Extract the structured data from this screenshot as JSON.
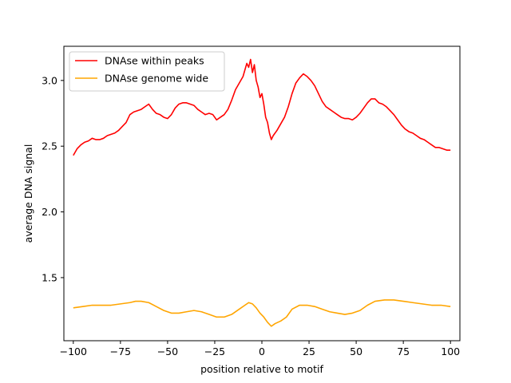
{
  "chart_data": {
    "type": "line",
    "title": "",
    "xlabel": "position relative to motif",
    "ylabel": "average DNA signal",
    "xlim": [
      -105,
      105
    ],
    "ylim": [
      1.02,
      3.26
    ],
    "xticks": [
      -100,
      -75,
      -50,
      -25,
      0,
      25,
      50,
      75,
      100
    ],
    "xtick_labels": [
      "−100",
      "−75",
      "−50",
      "−25",
      "0",
      "25",
      "50",
      "75",
      "100"
    ],
    "yticks": [
      1.5,
      2.0,
      2.5,
      3.0
    ],
    "ytick_labels": [
      "1.5",
      "2.0",
      "2.5",
      "3.0"
    ],
    "grid": false,
    "legend_position": "top-left",
    "series": [
      {
        "name": "DNAse within peaks",
        "color": "#ff0000",
        "points": [
          [
            -100,
            2.43
          ],
          [
            -98,
            2.48
          ],
          [
            -96,
            2.51
          ],
          [
            -94,
            2.53
          ],
          [
            -92,
            2.54
          ],
          [
            -90,
            2.56
          ],
          [
            -88,
            2.55
          ],
          [
            -86,
            2.55
          ],
          [
            -84,
            2.56
          ],
          [
            -82,
            2.58
          ],
          [
            -80,
            2.59
          ],
          [
            -78,
            2.6
          ],
          [
            -76,
            2.62
          ],
          [
            -74,
            2.65
          ],
          [
            -72,
            2.68
          ],
          [
            -70,
            2.74
          ],
          [
            -68,
            2.76
          ],
          [
            -66,
            2.77
          ],
          [
            -64,
            2.78
          ],
          [
            -62,
            2.8
          ],
          [
            -60,
            2.82
          ],
          [
            -58,
            2.78
          ],
          [
            -56,
            2.75
          ],
          [
            -54,
            2.74
          ],
          [
            -52,
            2.72
          ],
          [
            -50,
            2.71
          ],
          [
            -48,
            2.74
          ],
          [
            -46,
            2.79
          ],
          [
            -44,
            2.82
          ],
          [
            -42,
            2.83
          ],
          [
            -40,
            2.83
          ],
          [
            -38,
            2.82
          ],
          [
            -36,
            2.81
          ],
          [
            -34,
            2.78
          ],
          [
            -32,
            2.76
          ],
          [
            -30,
            2.74
          ],
          [
            -28,
            2.75
          ],
          [
            -26,
            2.74
          ],
          [
            -24,
            2.7
          ],
          [
            -22,
            2.72
          ],
          [
            -20,
            2.74
          ],
          [
            -18,
            2.78
          ],
          [
            -16,
            2.85
          ],
          [
            -14,
            2.93
          ],
          [
            -12,
            2.98
          ],
          [
            -10,
            3.03
          ],
          [
            -9,
            3.08
          ],
          [
            -8,
            3.13
          ],
          [
            -7,
            3.1
          ],
          [
            -6,
            3.16
          ],
          [
            -5,
            3.06
          ],
          [
            -4,
            3.12
          ],
          [
            -3,
            3.0
          ],
          [
            -2,
            2.95
          ],
          [
            -1,
            2.87
          ],
          [
            0,
            2.9
          ],
          [
            1,
            2.82
          ],
          [
            2,
            2.72
          ],
          [
            3,
            2.68
          ],
          [
            4,
            2.6
          ],
          [
            5,
            2.55
          ],
          [
            6,
            2.58
          ],
          [
            8,
            2.62
          ],
          [
            10,
            2.67
          ],
          [
            12,
            2.72
          ],
          [
            14,
            2.8
          ],
          [
            16,
            2.9
          ],
          [
            18,
            2.98
          ],
          [
            20,
            3.02
          ],
          [
            22,
            3.05
          ],
          [
            24,
            3.03
          ],
          [
            26,
            3.0
          ],
          [
            28,
            2.96
          ],
          [
            30,
            2.9
          ],
          [
            32,
            2.84
          ],
          [
            34,
            2.8
          ],
          [
            36,
            2.78
          ],
          [
            38,
            2.76
          ],
          [
            40,
            2.74
          ],
          [
            42,
            2.72
          ],
          [
            44,
            2.71
          ],
          [
            46,
            2.71
          ],
          [
            48,
            2.7
          ],
          [
            50,
            2.72
          ],
          [
            52,
            2.75
          ],
          [
            54,
            2.79
          ],
          [
            56,
            2.83
          ],
          [
            58,
            2.86
          ],
          [
            60,
            2.86
          ],
          [
            62,
            2.83
          ],
          [
            64,
            2.82
          ],
          [
            66,
            2.8
          ],
          [
            68,
            2.77
          ],
          [
            70,
            2.74
          ],
          [
            72,
            2.7
          ],
          [
            74,
            2.66
          ],
          [
            76,
            2.63
          ],
          [
            78,
            2.61
          ],
          [
            80,
            2.6
          ],
          [
            82,
            2.58
          ],
          [
            84,
            2.56
          ],
          [
            86,
            2.55
          ],
          [
            88,
            2.53
          ],
          [
            90,
            2.51
          ],
          [
            92,
            2.49
          ],
          [
            94,
            2.49
          ],
          [
            96,
            2.48
          ],
          [
            98,
            2.47
          ],
          [
            100,
            2.47
          ]
        ]
      },
      {
        "name": "DNAse genome wide",
        "color": "#ffa500",
        "points": [
          [
            -100,
            1.27
          ],
          [
            -95,
            1.28
          ],
          [
            -90,
            1.29
          ],
          [
            -85,
            1.29
          ],
          [
            -80,
            1.29
          ],
          [
            -75,
            1.3
          ],
          [
            -70,
            1.31
          ],
          [
            -67,
            1.32
          ],
          [
            -64,
            1.32
          ],
          [
            -60,
            1.31
          ],
          [
            -56,
            1.28
          ],
          [
            -52,
            1.25
          ],
          [
            -48,
            1.23
          ],
          [
            -44,
            1.23
          ],
          [
            -40,
            1.24
          ],
          [
            -36,
            1.25
          ],
          [
            -32,
            1.24
          ],
          [
            -28,
            1.22
          ],
          [
            -24,
            1.2
          ],
          [
            -20,
            1.2
          ],
          [
            -16,
            1.22
          ],
          [
            -12,
            1.26
          ],
          [
            -9,
            1.29
          ],
          [
            -7,
            1.31
          ],
          [
            -5,
            1.3
          ],
          [
            -3,
            1.27
          ],
          [
            -1,
            1.23
          ],
          [
            1,
            1.2
          ],
          [
            3,
            1.16
          ],
          [
            5,
            1.13
          ],
          [
            7,
            1.15
          ],
          [
            10,
            1.17
          ],
          [
            13,
            1.2
          ],
          [
            16,
            1.26
          ],
          [
            20,
            1.29
          ],
          [
            24,
            1.29
          ],
          [
            28,
            1.28
          ],
          [
            32,
            1.26
          ],
          [
            36,
            1.24
          ],
          [
            40,
            1.23
          ],
          [
            44,
            1.22
          ],
          [
            48,
            1.23
          ],
          [
            52,
            1.25
          ],
          [
            56,
            1.29
          ],
          [
            60,
            1.32
          ],
          [
            65,
            1.33
          ],
          [
            70,
            1.33
          ],
          [
            75,
            1.32
          ],
          [
            80,
            1.31
          ],
          [
            85,
            1.3
          ],
          [
            90,
            1.29
          ],
          [
            95,
            1.29
          ],
          [
            100,
            1.28
          ]
        ]
      }
    ]
  }
}
